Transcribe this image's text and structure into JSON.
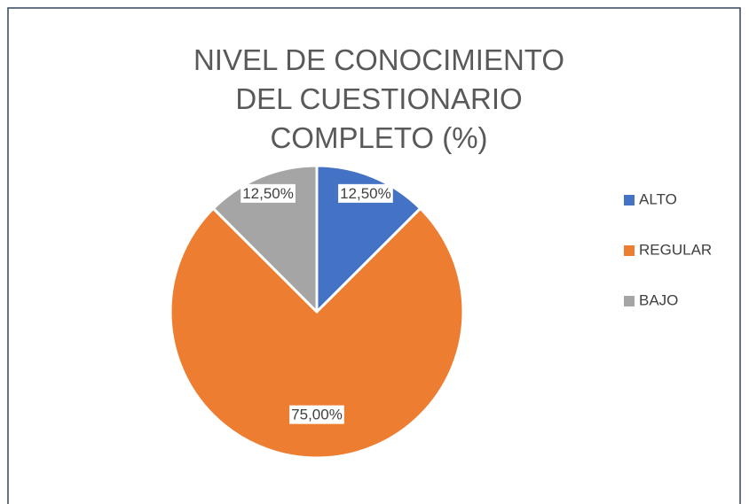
{
  "chart_data": {
    "type": "pie",
    "title": "NIVEL DE CONOCIMIENTO DEL CUESTIONARIO COMPLETO (%)",
    "categories": [
      "ALTO",
      "REGULAR",
      "BAJO"
    ],
    "values": [
      12.5,
      75,
      12.5
    ],
    "value_labels": [
      "12,50%",
      "75,00%",
      "12,50%"
    ],
    "colors": [
      "#4472c4",
      "#ed7d31",
      "#a5a5a5"
    ],
    "legend": "right"
  }
}
